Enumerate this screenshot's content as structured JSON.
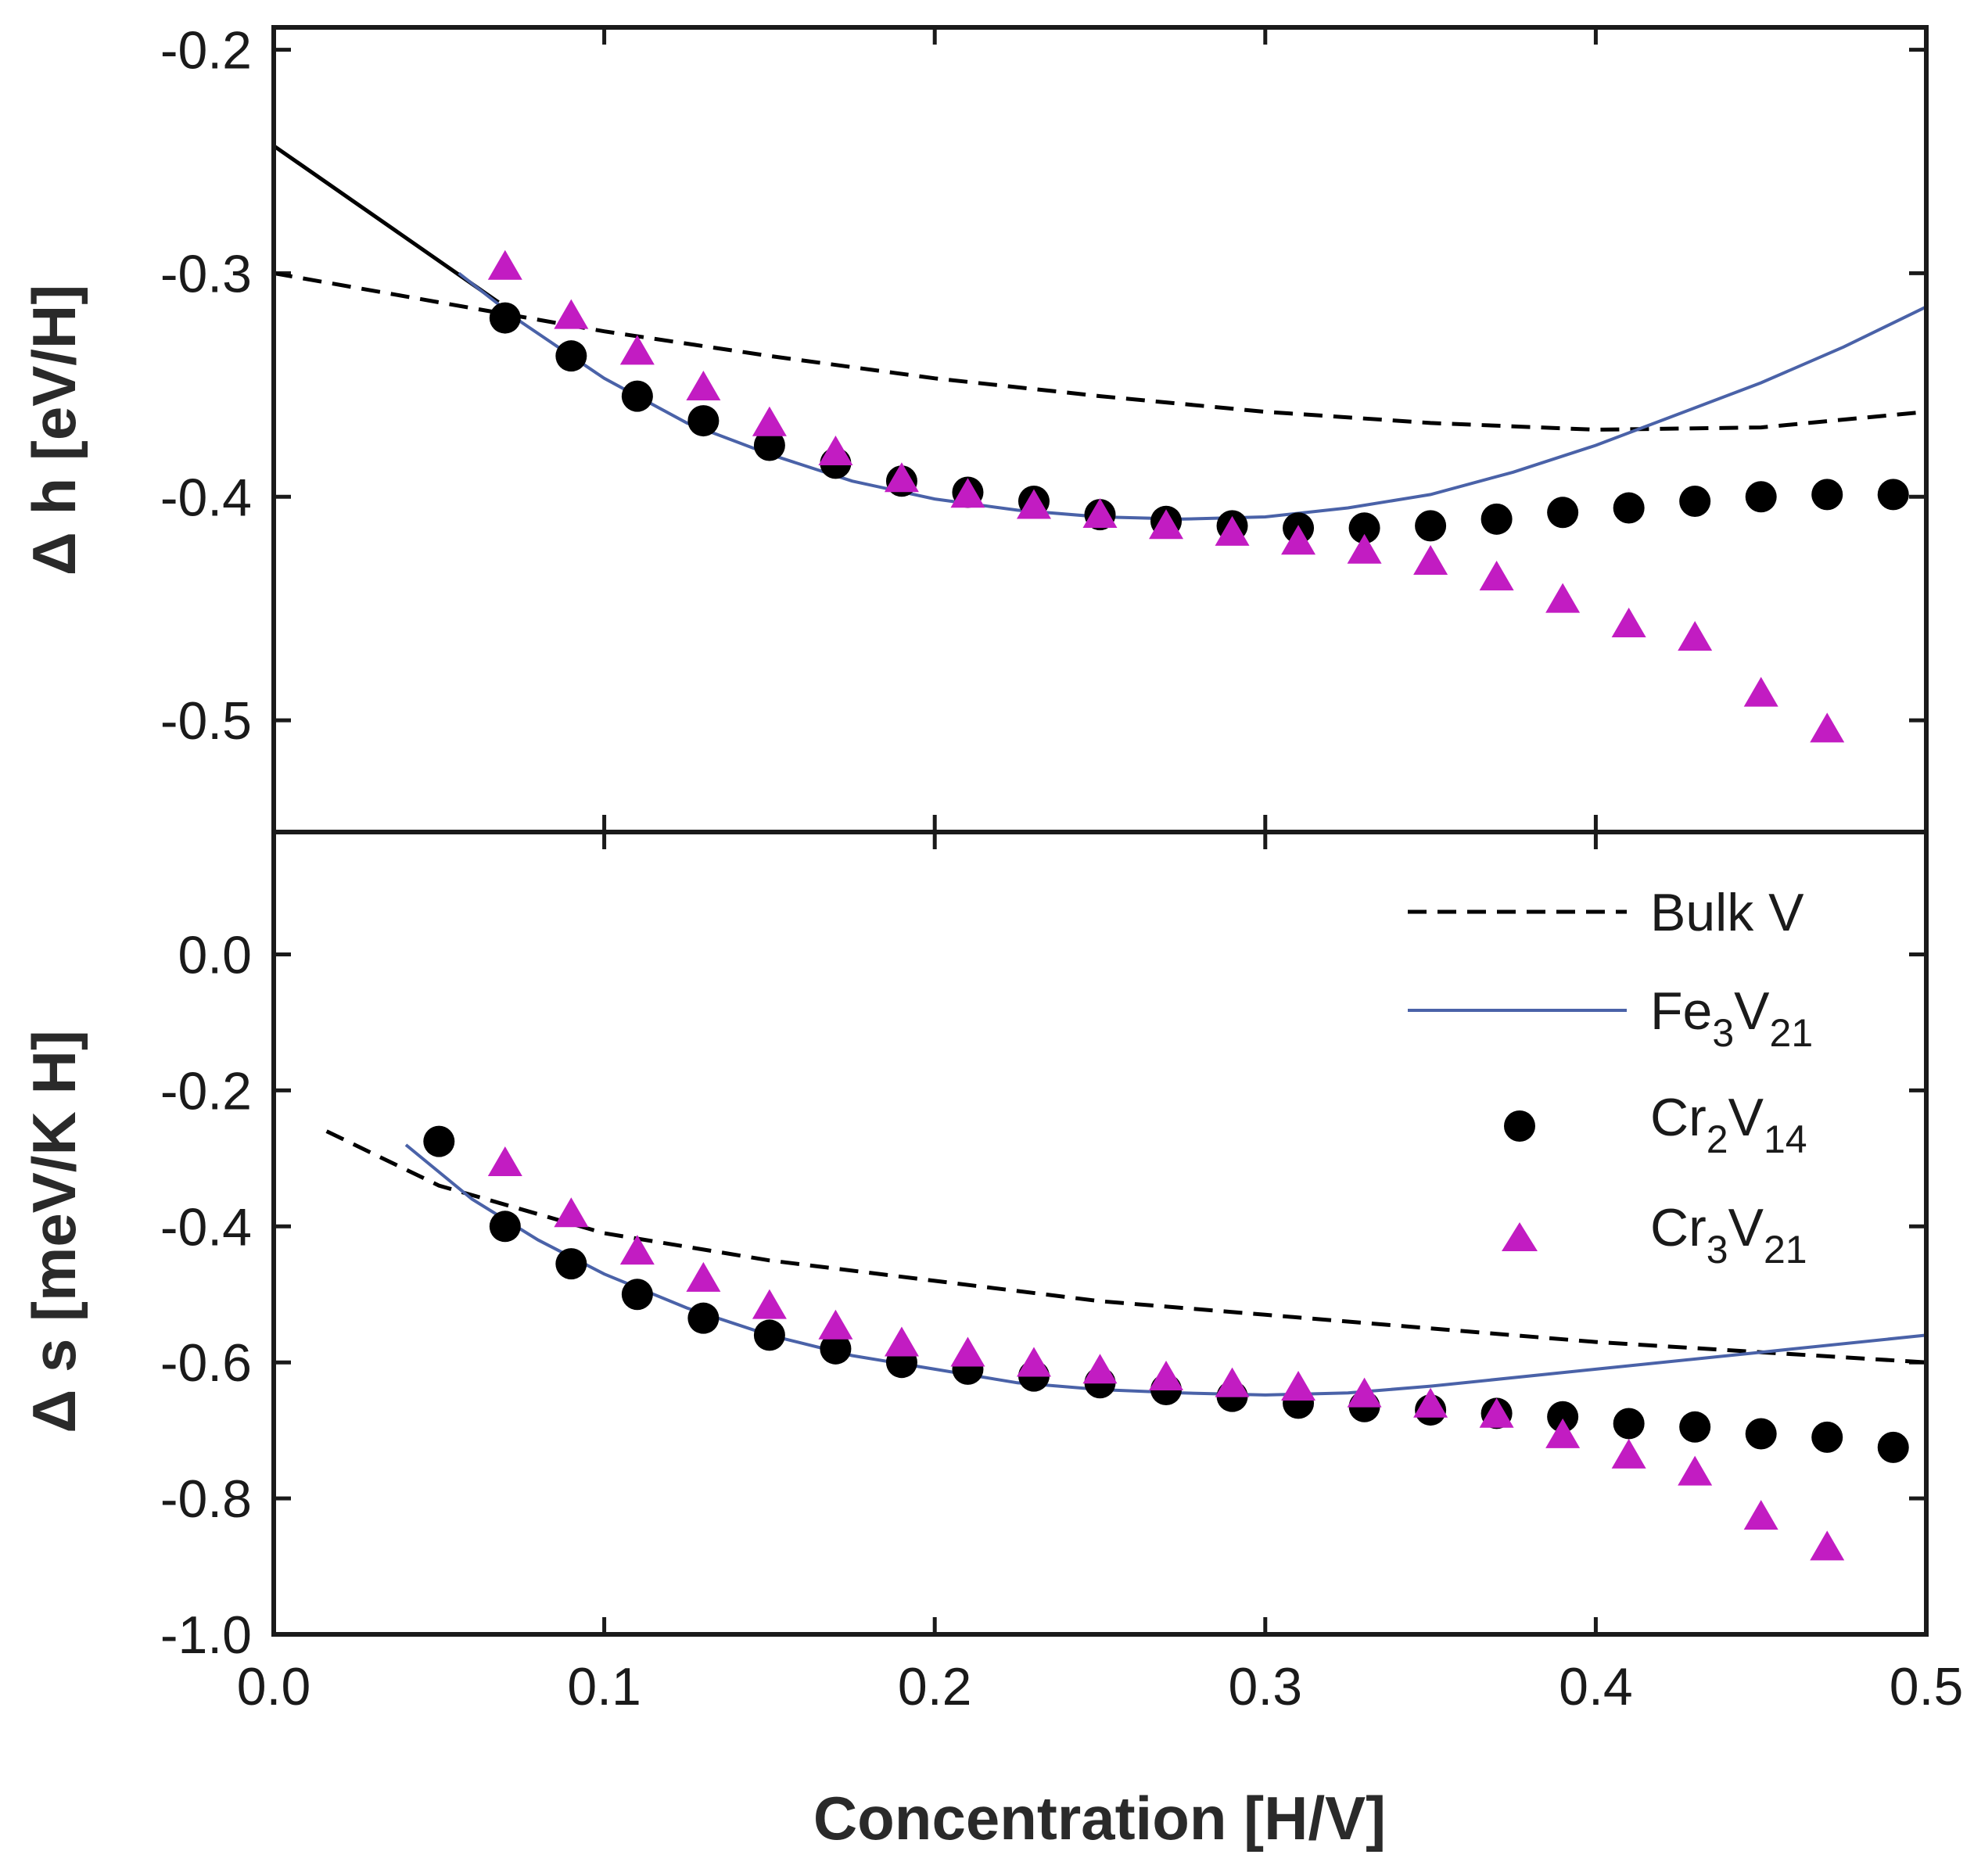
{
  "colors": {
    "bulk": "#000000",
    "fe": "#4a62a8",
    "cr2": "#000000",
    "cr3": "#c21cc2",
    "axis": "#1a1a1a"
  },
  "legend": {
    "bulk": "Bulk V",
    "fe": {
      "base": "Fe",
      "sub1": "3",
      "mid": "V",
      "sub2": "21"
    },
    "cr2": {
      "base": "Cr",
      "sub1": "2",
      "mid": "V",
      "sub2": "14"
    },
    "cr3": {
      "base": "Cr",
      "sub1": "3",
      "mid": "V",
      "sub2": "21"
    }
  },
  "chart_data": [
    {
      "type": "scatter",
      "panel": "top",
      "title": "",
      "ylabel": "Δ h [eV/H]",
      "xlabel": "",
      "xlim": [
        0.0,
        0.5
      ],
      "ylim": [
        -0.55,
        -0.19
      ],
      "yticks": [
        -0.2,
        -0.3,
        -0.4,
        -0.5
      ],
      "ytick_labels": [
        "-0.2",
        "-0.3",
        "-0.4",
        "-0.5"
      ],
      "xticks": [
        0.0,
        0.1,
        0.2,
        0.3,
        0.4,
        0.5
      ],
      "series": [
        {
          "name": "Bulk V",
          "style": "dashed-line",
          "x": [
            0.0,
            0.05,
            0.1,
            0.15,
            0.2,
            0.25,
            0.3,
            0.35,
            0.4,
            0.45,
            0.5
          ],
          "y": [
            -0.3,
            -0.313,
            -0.326,
            -0.337,
            -0.347,
            -0.355,
            -0.362,
            -0.367,
            -0.37,
            -0.369,
            -0.362
          ]
        },
        {
          "name": "Fe3V21 (solid extension)",
          "style": "solid-black-line",
          "x": [
            0.0,
            0.068
          ],
          "y": [
            -0.243,
            -0.313
          ]
        },
        {
          "name": "Fe3V21",
          "style": "solid-line",
          "x": [
            0.056,
            0.075,
            0.1,
            0.125,
            0.15,
            0.175,
            0.2,
            0.225,
            0.25,
            0.275,
            0.3,
            0.325,
            0.35,
            0.375,
            0.4,
            0.425,
            0.45,
            0.475,
            0.5
          ],
          "y": [
            -0.3,
            -0.322,
            -0.347,
            -0.367,
            -0.381,
            -0.393,
            -0.401,
            -0.406,
            -0.409,
            -0.41,
            -0.409,
            -0.405,
            -0.399,
            -0.389,
            -0.377,
            -0.363,
            -0.349,
            -0.333,
            -0.315
          ]
        },
        {
          "name": "Cr2V14",
          "style": "circle-marker",
          "x": [
            0.07,
            0.09,
            0.11,
            0.13,
            0.15,
            0.17,
            0.19,
            0.21,
            0.23,
            0.25,
            0.27,
            0.29,
            0.31,
            0.33,
            0.35,
            0.37,
            0.39,
            0.41,
            0.43,
            0.45,
            0.47,
            0.49
          ],
          "y": [
            -0.32,
            -0.337,
            -0.355,
            -0.366,
            -0.377,
            -0.385,
            -0.393,
            -0.398,
            -0.402,
            -0.408,
            -0.411,
            -0.413,
            -0.414,
            -0.414,
            -0.413,
            -0.41,
            -0.407,
            -0.405,
            -0.402,
            -0.4,
            -0.399,
            -0.399
          ]
        },
        {
          "name": "Cr3V21",
          "style": "triangle-marker",
          "x": [
            0.07,
            0.09,
            0.11,
            0.13,
            0.15,
            0.17,
            0.19,
            0.21,
            0.23,
            0.25,
            0.27,
            0.29,
            0.31,
            0.33,
            0.35,
            0.37,
            0.39,
            0.41,
            0.43,
            0.45,
            0.47
          ],
          "y": [
            -0.298,
            -0.32,
            -0.336,
            -0.352,
            -0.368,
            -0.381,
            -0.393,
            -0.4,
            -0.405,
            -0.409,
            -0.414,
            -0.417,
            -0.421,
            -0.425,
            -0.43,
            -0.437,
            -0.447,
            -0.458,
            -0.464,
            -0.489,
            -0.505
          ]
        }
      ]
    },
    {
      "type": "scatter",
      "panel": "bottom",
      "title": "",
      "ylabel": "Δ s [meV/K H]",
      "xlabel": "Concentration [H/V]",
      "xlim": [
        0.0,
        0.5
      ],
      "ylim": [
        -1.0,
        0.18
      ],
      "yticks": [
        0.0,
        -0.2,
        -0.4,
        -0.6,
        -0.8,
        -1.0
      ],
      "ytick_labels": [
        "0.0",
        "-0.2",
        "-0.4",
        "-0.6",
        "-0.8",
        "-1.0"
      ],
      "xticks": [
        0.0,
        0.1,
        0.2,
        0.3,
        0.4,
        0.5
      ],
      "xtick_labels": [
        "0.0",
        "0.1",
        "0.2",
        "0.3",
        "0.4",
        "0.5"
      ],
      "legend_position": "top-right",
      "series": [
        {
          "name": "Bulk V",
          "style": "dashed-line",
          "x": [
            0.016,
            0.05,
            0.1,
            0.15,
            0.2,
            0.25,
            0.3,
            0.35,
            0.4,
            0.45,
            0.5
          ],
          "y": [
            -0.26,
            -0.34,
            -0.41,
            -0.45,
            -0.48,
            -0.51,
            -0.53,
            -0.55,
            -0.57,
            -0.585,
            -0.6
          ]
        },
        {
          "name": "Fe3V21",
          "style": "solid-line",
          "x": [
            0.04,
            0.06,
            0.08,
            0.1,
            0.125,
            0.15,
            0.175,
            0.2,
            0.225,
            0.25,
            0.275,
            0.3,
            0.325,
            0.35,
            0.4,
            0.45,
            0.5
          ],
          "y": [
            -0.28,
            -0.36,
            -0.42,
            -0.47,
            -0.52,
            -0.56,
            -0.59,
            -0.61,
            -0.63,
            -0.64,
            -0.645,
            -0.648,
            -0.645,
            -0.635,
            -0.61,
            -0.585,
            -0.56
          ]
        },
        {
          "name": "Cr2V14",
          "style": "circle-marker",
          "x": [
            0.05,
            0.07,
            0.09,
            0.11,
            0.13,
            0.15,
            0.17,
            0.19,
            0.21,
            0.23,
            0.25,
            0.27,
            0.29,
            0.31,
            0.33,
            0.35,
            0.37,
            0.39,
            0.41,
            0.43,
            0.45,
            0.47,
            0.49
          ],
          "y": [
            -0.275,
            -0.4,
            -0.455,
            -0.5,
            -0.535,
            -0.56,
            -0.58,
            -0.6,
            -0.61,
            -0.62,
            -0.63,
            -0.64,
            -0.65,
            -0.66,
            -0.665,
            -0.67,
            -0.675,
            -0.68,
            -0.69,
            -0.695,
            -0.705,
            -0.71,
            -0.725
          ]
        },
        {
          "name": "Cr3V21",
          "style": "triangle-marker",
          "x": [
            0.07,
            0.09,
            0.11,
            0.13,
            0.15,
            0.17,
            0.19,
            0.21,
            0.23,
            0.25,
            0.27,
            0.29,
            0.31,
            0.33,
            0.35,
            0.37,
            0.39,
            0.41,
            0.43,
            0.45,
            0.47
          ],
          "y": [
            -0.31,
            -0.385,
            -0.44,
            -0.48,
            -0.52,
            -0.55,
            -0.575,
            -0.59,
            -0.605,
            -0.615,
            -0.625,
            -0.635,
            -0.64,
            -0.65,
            -0.665,
            -0.68,
            -0.71,
            -0.74,
            -0.765,
            -0.83,
            -0.875
          ]
        }
      ]
    }
  ]
}
